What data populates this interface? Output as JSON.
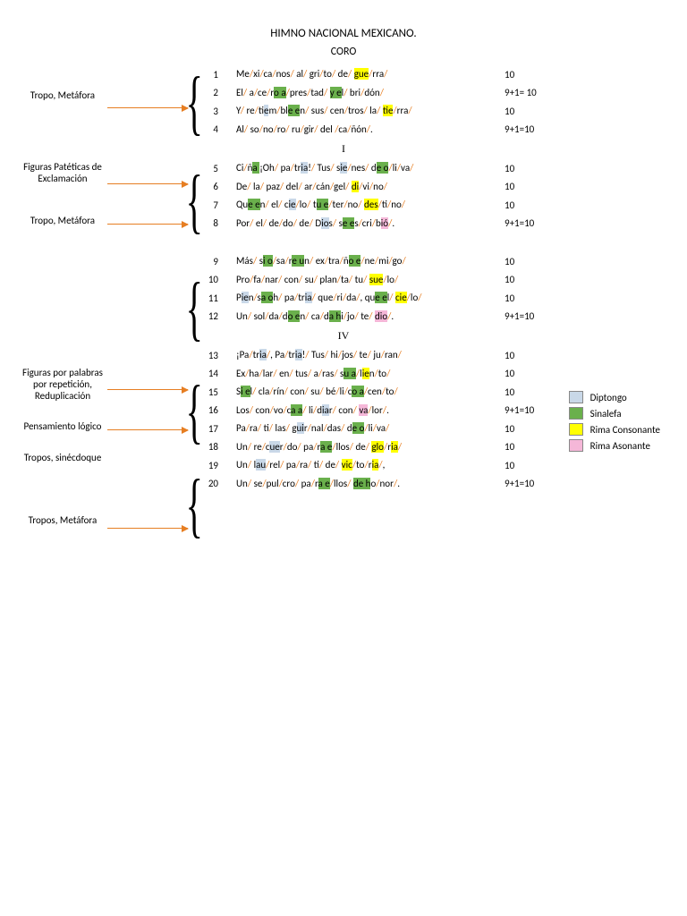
{
  "title": "HIMNO NACIONAL MEXICANO.",
  "subtitle": "CORO",
  "sections": {
    "s1": "I",
    "s4": "IV"
  },
  "colors": {
    "slash": "#e67e22",
    "diptongo": "#c9d8e8",
    "sinalefa": "#6ab04c",
    "consonante": "#ffff00",
    "asonante": "#f5b7d8",
    "arrow": "#e67e22"
  },
  "typography": {
    "base_fontsize": 12,
    "verse_fontsize": 11
  },
  "labels": {
    "l1": "Tropo, Metáfora",
    "l2": "Figuras Patéticas de Exclamación",
    "l3": "Tropo, Metáfora",
    "l4": "Figuras por palabras por repetición, Reduplicación",
    "l5": "Pensamiento lógico",
    "l6": "Tropos, sinécdoque",
    "l7": "Tropos, Metáfora"
  },
  "legend": {
    "diptongo": "Diptongo",
    "sinalefa": "Sinalefa",
    "consonante": "Rima Consonante",
    "asonante": "Rima Asonante"
  },
  "lines": [
    {
      "n": 1,
      "tokens": [
        [
          "Me"
        ],
        [
          "/"
        ],
        [
          "xi"
        ],
        [
          "/"
        ],
        [
          "ca"
        ],
        [
          "/"
        ],
        [
          "nos"
        ],
        [
          "/"
        ],
        [
          " al"
        ],
        [
          "/"
        ],
        [
          " gri"
        ],
        [
          "/"
        ],
        [
          "to"
        ],
        [
          "/"
        ],
        [
          " de"
        ],
        [
          "/"
        ],
        [
          " ",
          "gue",
          "con"
        ],
        [
          "/"
        ],
        [
          "rra",
          "con"
        ],
        [
          "/"
        ]
      ],
      "count": "10"
    },
    {
      "n": 2,
      "tokens": [
        [
          "El"
        ],
        [
          "/"
        ],
        [
          " a"
        ],
        [
          "/"
        ],
        [
          "ce"
        ],
        [
          "/"
        ],
        [
          "r",
          "o a",
          "sin"
        ],
        [
          "/"
        ],
        [
          "pres"
        ],
        [
          "/"
        ],
        [
          "tad"
        ],
        [
          "/"
        ],
        [
          " ",
          "y e",
          "sin"
        ],
        [
          "l"
        ],
        [
          "/"
        ],
        [
          " bri"
        ],
        [
          "/"
        ],
        [
          "dón",
          "con"
        ],
        [
          "/"
        ]
      ],
      "count": "9+1= 10"
    },
    {
      "n": 3,
      "tokens": [
        [
          "Y"
        ],
        [
          "/"
        ],
        [
          " re"
        ],
        [
          "/"
        ],
        [
          "t",
          "ie",
          "dip"
        ],
        [
          "m"
        ],
        [
          "/"
        ],
        [
          "bl",
          "e e",
          "sin"
        ],
        [
          "n"
        ],
        [
          "/"
        ],
        [
          " sus"
        ],
        [
          "/"
        ],
        [
          " cen"
        ],
        [
          "/"
        ],
        [
          "tros"
        ],
        [
          "/"
        ],
        [
          " la"
        ],
        [
          "/"
        ],
        [
          " ",
          "tie",
          "con"
        ],
        [
          "/"
        ],
        [
          "rra",
          "con"
        ],
        [
          "/"
        ]
      ],
      "count": "10"
    },
    {
      "n": 4,
      "tokens": [
        [
          "Al"
        ],
        [
          "/"
        ],
        [
          " so"
        ],
        [
          "/"
        ],
        [
          "no"
        ],
        [
          "/"
        ],
        [
          "ro"
        ],
        [
          "/"
        ],
        [
          " ru"
        ],
        [
          "/"
        ],
        [
          "gir"
        ],
        [
          "/"
        ],
        [
          " del "
        ],
        [
          "/"
        ],
        [
          "ca",
          "aso"
        ],
        [
          "/"
        ],
        [
          "ñón",
          "aso"
        ],
        [
          "/"
        ],
        [
          "."
        ]
      ],
      "count": "9+1=10"
    },
    {
      "n": 5,
      "tokens": [
        [
          "Ci"
        ],
        [
          "/"
        ],
        [
          "ñ",
          "a ",
          "sin"
        ],
        [
          "¡Oh"
        ],
        [
          "/"
        ],
        [
          " pa"
        ],
        [
          "/"
        ],
        [
          "tr",
          "ia",
          "dip"
        ],
        [
          "!"
        ],
        [
          "/"
        ],
        [
          " Tus"
        ],
        [
          "/"
        ],
        [
          " s",
          "ie",
          "dip"
        ],
        [
          "/"
        ],
        [
          "nes"
        ],
        [
          "/"
        ],
        [
          " d",
          "e o",
          "sin"
        ],
        [
          "/"
        ],
        [
          "li"
        ],
        [
          "/"
        ],
        [
          "va"
        ],
        [
          "/"
        ]
      ],
      "count": "10"
    },
    {
      "n": 6,
      "tokens": [
        [
          "De"
        ],
        [
          "/"
        ],
        [
          " la"
        ],
        [
          "/"
        ],
        [
          " paz"
        ],
        [
          "/"
        ],
        [
          " del"
        ],
        [
          "/"
        ],
        [
          " ar"
        ],
        [
          "/"
        ],
        [
          "cán"
        ],
        [
          "/"
        ],
        [
          "gel"
        ],
        [
          "/"
        ],
        [
          " ",
          "di",
          "con"
        ],
        [
          "/"
        ],
        [
          "vi",
          "con"
        ],
        [
          "/"
        ],
        [
          "no",
          "con"
        ],
        [
          "/"
        ]
      ],
      "count": "10"
    },
    {
      "n": 7,
      "tokens": [
        [
          "Qu",
          "e e",
          "sin"
        ],
        [
          "n"
        ],
        [
          "/"
        ],
        [
          " el"
        ],
        [
          "/"
        ],
        [
          " c",
          "ie",
          "dip"
        ],
        [
          "/"
        ],
        [
          "lo"
        ],
        [
          "/"
        ],
        [
          " t",
          "u e",
          "sin"
        ],
        [
          "/"
        ],
        [
          "ter"
        ],
        [
          "/"
        ],
        [
          "no"
        ],
        [
          "/"
        ],
        [
          " ",
          "des",
          "con"
        ],
        [
          "/"
        ],
        [
          "ti",
          "con"
        ],
        [
          "/"
        ],
        [
          "no",
          "con"
        ],
        [
          "/"
        ]
      ],
      "count": "10"
    },
    {
      "n": 8,
      "tokens": [
        [
          "Por"
        ],
        [
          "/"
        ],
        [
          " el"
        ],
        [
          "/"
        ],
        [
          " de"
        ],
        [
          "/"
        ],
        [
          "do"
        ],
        [
          "/"
        ],
        [
          " de"
        ],
        [
          "/"
        ],
        [
          " D",
          "io",
          "dip"
        ],
        [
          "s"
        ],
        [
          "/"
        ],
        [
          " s",
          "e e",
          "sin"
        ],
        [
          "s"
        ],
        [
          "/"
        ],
        [
          "cri"
        ],
        [
          "/"
        ],
        [
          "b",
          "ió",
          "aso"
        ],
        [
          "/"
        ],
        [
          "."
        ]
      ],
      "count": "9+1=10"
    },
    {
      "n": 9,
      "tokens": [
        [
          "Más"
        ],
        [
          "/"
        ],
        [
          " s",
          "i o",
          "sin"
        ],
        [
          "/"
        ],
        [
          "sa"
        ],
        [
          "/"
        ],
        [
          "r",
          "e u",
          "sin"
        ],
        [
          "n"
        ],
        [
          "/"
        ],
        [
          " ex"
        ],
        [
          "/"
        ],
        [
          "tra"
        ],
        [
          "/"
        ],
        [
          "ñ",
          "o e",
          "sin"
        ],
        [
          "/"
        ],
        [
          "ne"
        ],
        [
          "/"
        ],
        [
          "mi"
        ],
        [
          "/"
        ],
        [
          "go"
        ],
        [
          "/"
        ]
      ],
      "count": "10"
    },
    {
      "n": 10,
      "tokens": [
        [
          "Pro"
        ],
        [
          "/"
        ],
        [
          "fa"
        ],
        [
          "/"
        ],
        [
          "nar"
        ],
        [
          "/"
        ],
        [
          " con"
        ],
        [
          "/"
        ],
        [
          " su"
        ],
        [
          "/"
        ],
        [
          " plan"
        ],
        [
          "/"
        ],
        [
          "ta"
        ],
        [
          "/"
        ],
        [
          " tu"
        ],
        [
          "/"
        ],
        [
          " ",
          "sue",
          "con"
        ],
        [
          "/"
        ],
        [
          "lo",
          "con"
        ],
        [
          "/"
        ]
      ],
      "count": "10"
    },
    {
      "n": 11,
      "tokens": [
        [
          "P",
          "ie",
          "dip"
        ],
        [
          "n"
        ],
        [
          "/"
        ],
        [
          "s",
          "a o",
          "sin"
        ],
        [
          "h"
        ],
        [
          "/"
        ],
        [
          " pa"
        ],
        [
          "/"
        ],
        [
          "tr",
          "ia",
          "dip"
        ],
        [
          "/"
        ],
        [
          " que"
        ],
        [
          "/"
        ],
        [
          "ri"
        ],
        [
          "/"
        ],
        [
          "da"
        ],
        [
          "/"
        ],
        [
          ", qu",
          "e e",
          "sin"
        ],
        [
          "l"
        ],
        [
          "/"
        ],
        [
          " ",
          "cie",
          "con"
        ],
        [
          "/"
        ],
        [
          "lo",
          "con"
        ],
        [
          "/"
        ]
      ],
      "count": "10"
    },
    {
      "n": 12,
      "tokens": [
        [
          "Un"
        ],
        [
          "/"
        ],
        [
          " sol"
        ],
        [
          "/"
        ],
        [
          "da"
        ],
        [
          "/"
        ],
        [
          "d",
          "o e",
          "sin"
        ],
        [
          "n"
        ],
        [
          "/"
        ],
        [
          " ca"
        ],
        [
          "/"
        ],
        [
          "d",
          "a h",
          "sin"
        ],
        [
          "i"
        ],
        [
          "/"
        ],
        [
          "jo"
        ],
        [
          "/"
        ],
        [
          " te"
        ],
        [
          "/"
        ],
        [
          " ",
          "dio",
          "aso"
        ],
        [
          "/"
        ],
        [
          "."
        ]
      ],
      "count": "9+1=10"
    },
    {
      "n": 13,
      "tokens": [
        [
          "¡Pa"
        ],
        [
          "/"
        ],
        [
          "tr",
          "ia",
          "dip"
        ],
        [
          "/"
        ],
        [
          ", Pa"
        ],
        [
          "/"
        ],
        [
          "tr",
          "ia",
          "dip"
        ],
        [
          "!"
        ],
        [
          "/"
        ],
        [
          " Tus"
        ],
        [
          "/"
        ],
        [
          " hi"
        ],
        [
          "/"
        ],
        [
          "jos"
        ],
        [
          "/"
        ],
        [
          " te"
        ],
        [
          "/"
        ],
        [
          " ju"
        ],
        [
          "/"
        ],
        [
          "ran"
        ],
        [
          "/"
        ]
      ],
      "count": "10"
    },
    {
      "n": 14,
      "tokens": [
        [
          "Ex"
        ],
        [
          "/"
        ],
        [
          "ha"
        ],
        [
          "/"
        ],
        [
          "lar"
        ],
        [
          "/"
        ],
        [
          " en"
        ],
        [
          "/"
        ],
        [
          " tus"
        ],
        [
          "/"
        ],
        [
          " a"
        ],
        [
          "/"
        ],
        [
          "ras"
        ],
        [
          "/"
        ],
        [
          " s",
          "u a",
          "sin"
        ],
        [
          "/"
        ],
        [
          "l",
          "ie",
          "con"
        ],
        [
          "n",
          "con"
        ],
        [
          "/"
        ],
        [
          "to",
          "con"
        ],
        [
          "/"
        ]
      ],
      "count": "10"
    },
    {
      "n": 15,
      "tokens": [
        [
          "S",
          "i e",
          "sin"
        ],
        [
          "l"
        ],
        [
          "/"
        ],
        [
          " cla"
        ],
        [
          "/"
        ],
        [
          "rín"
        ],
        [
          "/"
        ],
        [
          " con"
        ],
        [
          "/"
        ],
        [
          " su"
        ],
        [
          "/"
        ],
        [
          " bé"
        ],
        [
          "/"
        ],
        [
          "li"
        ],
        [
          "/"
        ],
        [
          "c",
          "o a",
          "sin"
        ],
        [
          "/"
        ],
        [
          "cen",
          "con"
        ],
        [
          "/"
        ],
        [
          "to",
          "con"
        ],
        [
          "/"
        ]
      ],
      "count": "10"
    },
    {
      "n": 16,
      "tokens": [
        [
          "Los"
        ],
        [
          "/"
        ],
        [
          " con"
        ],
        [
          "/"
        ],
        [
          "vo"
        ],
        [
          "/"
        ],
        [
          "c",
          "a a",
          "sin"
        ],
        [
          "/"
        ],
        [
          " li"
        ],
        [
          "/"
        ],
        [
          "d",
          "ia",
          "dip"
        ],
        [
          "r"
        ],
        [
          "/"
        ],
        [
          " con"
        ],
        [
          "/"
        ],
        [
          " ",
          "va",
          "aso"
        ],
        [
          "/"
        ],
        [
          "lor",
          "aso"
        ],
        [
          "/"
        ],
        [
          "."
        ]
      ],
      "count": "9+1=10"
    },
    {
      "n": 17,
      "tokens": [
        [
          "Pa"
        ],
        [
          "/"
        ],
        [
          "ra"
        ],
        [
          "/"
        ],
        [
          " ti"
        ],
        [
          "/"
        ],
        [
          " las"
        ],
        [
          "/"
        ],
        [
          " g",
          "ui",
          "dip"
        ],
        [
          "r"
        ],
        [
          "/"
        ],
        [
          "nal"
        ],
        [
          "/"
        ],
        [
          "das"
        ],
        [
          "/"
        ],
        [
          " d",
          "e o",
          "sin"
        ],
        [
          "/"
        ],
        [
          "li"
        ],
        [
          "/"
        ],
        [
          "va"
        ],
        [
          "/"
        ]
      ],
      "count": "10"
    },
    {
      "n": 18,
      "tokens": [
        [
          "Un"
        ],
        [
          "/"
        ],
        [
          " re"
        ],
        [
          "/"
        ],
        [
          "c",
          "ue",
          "dip"
        ],
        [
          "r"
        ],
        [
          "/"
        ],
        [
          "do"
        ],
        [
          "/"
        ],
        [
          " pa"
        ],
        [
          "/"
        ],
        [
          "r",
          "a e",
          "sin"
        ],
        [
          "/"
        ],
        [
          "llos"
        ],
        [
          "/"
        ],
        [
          " de"
        ],
        [
          "/"
        ],
        [
          " ",
          "glo",
          "con"
        ],
        [
          "/"
        ],
        [
          "r",
          "ia",
          "con"
        ],
        [
          "/"
        ]
      ],
      "count": "10"
    },
    {
      "n": 19,
      "tokens": [
        [
          "Un"
        ],
        [
          "/"
        ],
        [
          " l",
          "au",
          "dip"
        ],
        [
          "/"
        ],
        [
          "rel"
        ],
        [
          "/"
        ],
        [
          " pa"
        ],
        [
          "/"
        ],
        [
          "ra"
        ],
        [
          "/"
        ],
        [
          " ti"
        ],
        [
          "/"
        ],
        [
          " de"
        ],
        [
          "/"
        ],
        [
          " ",
          "vic",
          "con"
        ],
        [
          "/"
        ],
        [
          "to",
          "con"
        ],
        [
          "/"
        ],
        [
          "r",
          "ia",
          "con"
        ],
        [
          "/"
        ],
        [
          ","
        ]
      ],
      "count": "10"
    },
    {
      "n": 20,
      "tokens": [
        [
          "Un"
        ],
        [
          "/"
        ],
        [
          " se"
        ],
        [
          "/"
        ],
        [
          "pul"
        ],
        [
          "/"
        ],
        [
          "cro"
        ],
        [
          "/"
        ],
        [
          " pa"
        ],
        [
          "/"
        ],
        [
          "r",
          "a e",
          "sin"
        ],
        [
          "/"
        ],
        [
          "llos"
        ],
        [
          "/"
        ],
        [
          " ",
          "de h",
          "sin"
        ],
        [
          "o",
          "sin"
        ],
        [
          "/"
        ],
        [
          "nor",
          "aso"
        ],
        [
          "/"
        ],
        [
          "."
        ]
      ],
      "count": "9+1=10"
    }
  ]
}
